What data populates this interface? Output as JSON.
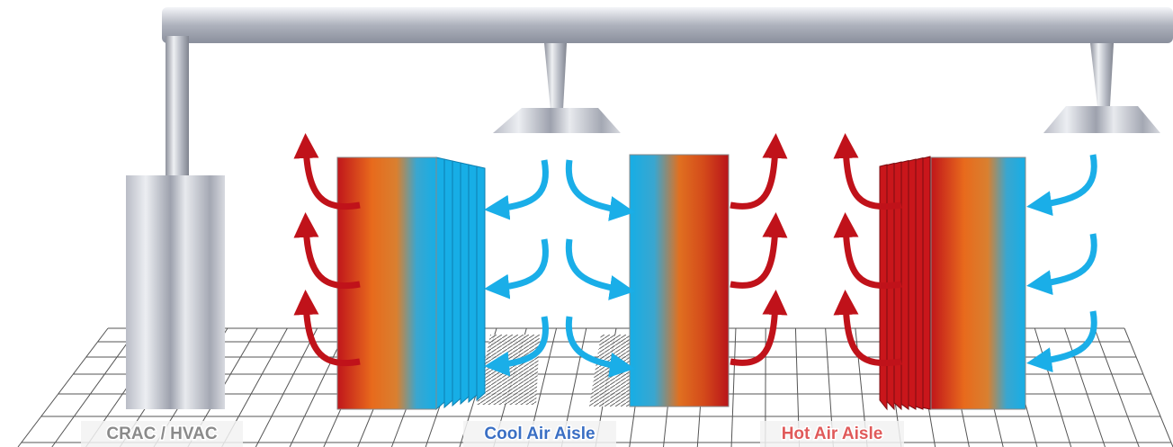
{
  "labels": {
    "crac": "CRAC / HVAC",
    "cool_aisle": "Cool Air Aisle",
    "hot_aisle": "Hot Air Aisle"
  }
}
